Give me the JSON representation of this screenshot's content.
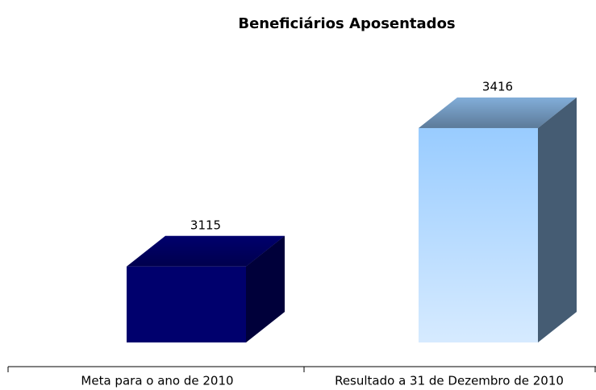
{
  "chart_data": {
    "type": "bar3d",
    "title": "Beneficiários Aposentados",
    "categories": [
      "Meta para o ano de 2010",
      "Resultado a 31 de Dezembro de 2010"
    ],
    "values": [
      3115,
      3416
    ],
    "colors": [
      "#000080",
      "#99ccff"
    ],
    "ylim": [
      2950,
      3500
    ]
  }
}
